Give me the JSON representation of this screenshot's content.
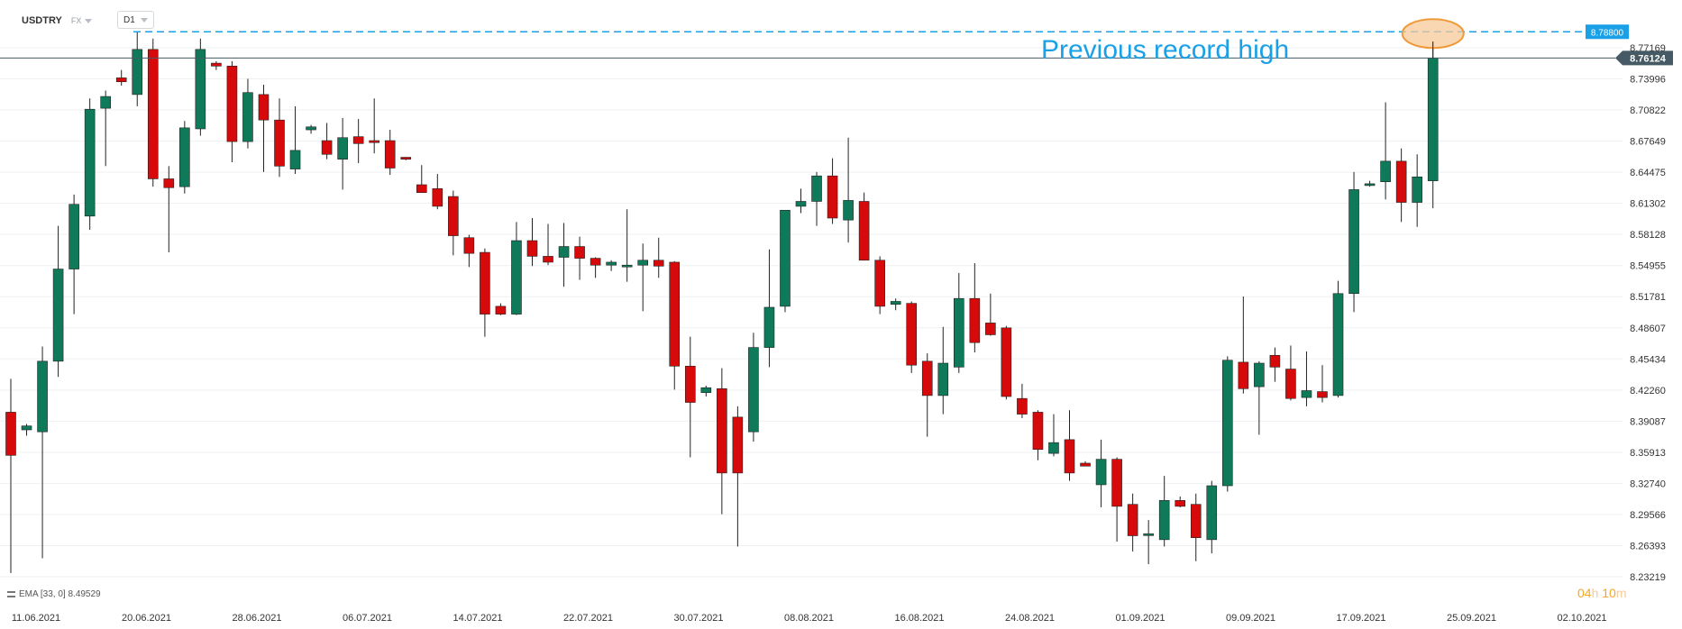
{
  "header": {
    "symbol": "USDTRY",
    "market": "FX",
    "timeframe": "D1"
  },
  "indicator": {
    "label": "EMA [33, 0] 8.49529"
  },
  "countdown": {
    "hours": "04",
    "hours_unit": "h",
    "minutes": "10",
    "minutes_unit": "m"
  },
  "colors": {
    "up": "#0f7a5a",
    "down": "#d60a0a",
    "annotation": "#1aa0e6",
    "highlight_fill": "#f7c99a",
    "highlight_stroke": "#f09a3a",
    "current_price_bg": "#455a64",
    "grid": "#eef0f2",
    "axis_text": "#333333"
  },
  "chart_data": {
    "type": "candlestick",
    "ylim": [
      8.2,
      8.8
    ],
    "y_ticks": [
      "8.77169",
      "8.73996",
      "8.70822",
      "8.67649",
      "8.64475",
      "8.61302",
      "8.58128",
      "8.54955",
      "8.51781",
      "8.48607",
      "8.45434",
      "8.42260",
      "8.39087",
      "8.35913",
      "8.32740",
      "8.29566",
      "8.26393",
      "8.23219"
    ],
    "x_tick_labels": [
      "11.06.2021",
      "20.06.2021",
      "28.06.2021",
      "06.07.2021",
      "14.07.2021",
      "22.07.2021",
      "30.07.2021",
      "08.08.2021",
      "16.08.2021",
      "24.08.2021",
      "01.09.2021",
      "09.09.2021",
      "17.09.2021",
      "25.09.2021",
      "02.10.2021"
    ],
    "annotation": {
      "text": "Previous record high",
      "level": 8.788,
      "level_label": "8.78800"
    },
    "current_price": {
      "value": 8.76124,
      "label": "8.76124"
    },
    "candles": [
      {
        "o": 8.4,
        "h": 8.434,
        "l": 8.236,
        "c": 8.356
      },
      {
        "o": 8.382,
        "h": 8.388,
        "l": 8.376,
        "c": 8.386
      },
      {
        "o": 8.38,
        "h": 8.467,
        "l": 8.251,
        "c": 8.452
      },
      {
        "o": 8.452,
        "h": 8.59,
        "l": 8.436,
        "c": 8.546
      },
      {
        "o": 8.546,
        "h": 8.622,
        "l": 8.5,
        "c": 8.612
      },
      {
        "o": 8.6,
        "h": 8.72,
        "l": 8.586,
        "c": 8.709
      },
      {
        "o": 8.71,
        "h": 8.728,
        "l": 8.651,
        "c": 8.722
      },
      {
        "o": 8.741,
        "h": 8.749,
        "l": 8.733,
        "c": 8.737
      },
      {
        "o": 8.724,
        "h": 8.788,
        "l": 8.712,
        "c": 8.77
      },
      {
        "o": 8.77,
        "h": 8.781,
        "l": 8.63,
        "c": 8.638
      },
      {
        "o": 8.638,
        "h": 8.651,
        "l": 8.563,
        "c": 8.629
      },
      {
        "o": 8.63,
        "h": 8.697,
        "l": 8.623,
        "c": 8.69
      },
      {
        "o": 8.689,
        "h": 8.781,
        "l": 8.682,
        "c": 8.77
      },
      {
        "o": 8.756,
        "h": 8.758,
        "l": 8.749,
        "c": 8.753
      },
      {
        "o": 8.753,
        "h": 8.758,
        "l": 8.655,
        "c": 8.676
      },
      {
        "o": 8.676,
        "h": 8.74,
        "l": 8.669,
        "c": 8.726
      },
      {
        "o": 8.724,
        "h": 8.734,
        "l": 8.645,
        "c": 8.698
      },
      {
        "o": 8.698,
        "h": 8.72,
        "l": 8.64,
        "c": 8.651
      },
      {
        "o": 8.648,
        "h": 8.712,
        "l": 8.643,
        "c": 8.667
      },
      {
        "o": 8.688,
        "h": 8.693,
        "l": 8.684,
        "c": 8.691
      },
      {
        "o": 8.677,
        "h": 8.695,
        "l": 8.658,
        "c": 8.663
      },
      {
        "o": 8.658,
        "h": 8.7,
        "l": 8.627,
        "c": 8.68
      },
      {
        "o": 8.681,
        "h": 8.699,
        "l": 8.654,
        "c": 8.674
      },
      {
        "o": 8.677,
        "h": 8.72,
        "l": 8.664,
        "c": 8.675
      },
      {
        "o": 8.677,
        "h": 8.688,
        "l": 8.642,
        "c": 8.649
      },
      {
        "o": 8.66,
        "h": 8.66,
        "l": 8.657,
        "c": 8.658
      },
      {
        "o": 8.632,
        "h": 8.652,
        "l": 8.624,
        "c": 8.624
      },
      {
        "o": 8.628,
        "h": 8.643,
        "l": 8.607,
        "c": 8.61
      },
      {
        "o": 8.62,
        "h": 8.626,
        "l": 8.56,
        "c": 8.58
      },
      {
        "o": 8.578,
        "h": 8.581,
        "l": 8.548,
        "c": 8.562
      },
      {
        "o": 8.563,
        "h": 8.567,
        "l": 8.477,
        "c": 8.5
      },
      {
        "o": 8.508,
        "h": 8.511,
        "l": 8.499,
        "c": 8.5
      },
      {
        "o": 8.5,
        "h": 8.594,
        "l": 8.499,
        "c": 8.575
      },
      {
        "o": 8.575,
        "h": 8.598,
        "l": 8.549,
        "c": 8.559
      },
      {
        "o": 8.559,
        "h": 8.592,
        "l": 8.55,
        "c": 8.553
      },
      {
        "o": 8.558,
        "h": 8.593,
        "l": 8.528,
        "c": 8.569
      },
      {
        "o": 8.569,
        "h": 8.579,
        "l": 8.535,
        "c": 8.557
      },
      {
        "o": 8.557,
        "h": 8.558,
        "l": 8.537,
        "c": 8.55
      },
      {
        "o": 8.55,
        "h": 8.555,
        "l": 8.544,
        "c": 8.553
      },
      {
        "o": 8.549,
        "h": 8.607,
        "l": 8.533,
        "c": 8.55
      },
      {
        "o": 8.55,
        "h": 8.572,
        "l": 8.503,
        "c": 8.555
      },
      {
        "o": 8.555,
        "h": 8.578,
        "l": 8.537,
        "c": 8.549
      },
      {
        "o": 8.553,
        "h": 8.554,
        "l": 8.423,
        "c": 8.447
      },
      {
        "o": 8.447,
        "h": 8.477,
        "l": 8.354,
        "c": 8.41
      },
      {
        "o": 8.42,
        "h": 8.427,
        "l": 8.416,
        "c": 8.425
      },
      {
        "o": 8.424,
        "h": 8.445,
        "l": 8.296,
        "c": 8.338
      },
      {
        "o": 8.395,
        "h": 8.406,
        "l": 8.263,
        "c": 8.338
      },
      {
        "o": 8.38,
        "h": 8.481,
        "l": 8.37,
        "c": 8.466
      },
      {
        "o": 8.466,
        "h": 8.566,
        "l": 8.446,
        "c": 8.507
      },
      {
        "o": 8.508,
        "h": 8.605,
        "l": 8.502,
        "c": 8.606
      },
      {
        "o": 8.61,
        "h": 8.628,
        "l": 8.603,
        "c": 8.615
      },
      {
        "o": 8.615,
        "h": 8.645,
        "l": 8.59,
        "c": 8.641
      },
      {
        "o": 8.641,
        "h": 8.659,
        "l": 8.592,
        "c": 8.598
      },
      {
        "o": 8.596,
        "h": 8.68,
        "l": 8.573,
        "c": 8.616
      },
      {
        "o": 8.615,
        "h": 8.624,
        "l": 8.555,
        "c": 8.555
      },
      {
        "o": 8.555,
        "h": 8.559,
        "l": 8.5,
        "c": 8.508
      },
      {
        "o": 8.51,
        "h": 8.516,
        "l": 8.504,
        "c": 8.513
      },
      {
        "o": 8.511,
        "h": 8.513,
        "l": 8.44,
        "c": 8.448
      },
      {
        "o": 8.452,
        "h": 8.46,
        "l": 8.375,
        "c": 8.417
      },
      {
        "o": 8.417,
        "h": 8.487,
        "l": 8.398,
        "c": 8.45
      },
      {
        "o": 8.446,
        "h": 8.542,
        "l": 8.44,
        "c": 8.516
      },
      {
        "o": 8.516,
        "h": 8.552,
        "l": 8.461,
        "c": 8.471
      },
      {
        "o": 8.491,
        "h": 8.521,
        "l": 8.478,
        "c": 8.479
      },
      {
        "o": 8.486,
        "h": 8.488,
        "l": 8.413,
        "c": 8.416
      },
      {
        "o": 8.414,
        "h": 8.429,
        "l": 8.394,
        "c": 8.398
      },
      {
        "o": 8.4,
        "h": 8.402,
        "l": 8.351,
        "c": 8.362
      },
      {
        "o": 8.358,
        "h": 8.398,
        "l": 8.355,
        "c": 8.369
      },
      {
        "o": 8.372,
        "h": 8.402,
        "l": 8.33,
        "c": 8.338
      },
      {
        "o": 8.348,
        "h": 8.35,
        "l": 8.345,
        "c": 8.345
      },
      {
        "o": 8.326,
        "h": 8.372,
        "l": 8.303,
        "c": 8.352
      },
      {
        "o": 8.352,
        "h": 8.354,
        "l": 8.268,
        "c": 8.304
      },
      {
        "o": 8.306,
        "h": 8.317,
        "l": 8.258,
        "c": 8.274
      },
      {
        "o": 8.275,
        "h": 8.29,
        "l": 8.245,
        "c": 8.276
      },
      {
        "o": 8.27,
        "h": 8.335,
        "l": 8.263,
        "c": 8.31
      },
      {
        "o": 8.31,
        "h": 8.314,
        "l": 8.303,
        "c": 8.304
      },
      {
        "o": 8.306,
        "h": 8.317,
        "l": 8.248,
        "c": 8.272
      },
      {
        "o": 8.27,
        "h": 8.33,
        "l": 8.256,
        "c": 8.325
      },
      {
        "o": 8.325,
        "h": 8.457,
        "l": 8.319,
        "c": 8.453
      },
      {
        "o": 8.451,
        "h": 8.518,
        "l": 8.419,
        "c": 8.424
      },
      {
        "o": 8.426,
        "h": 8.452,
        "l": 8.377,
        "c": 8.45
      },
      {
        "o": 8.458,
        "h": 8.466,
        "l": 8.431,
        "c": 8.446
      },
      {
        "o": 8.444,
        "h": 8.468,
        "l": 8.412,
        "c": 8.414
      },
      {
        "o": 8.415,
        "h": 8.462,
        "l": 8.406,
        "c": 8.422
      },
      {
        "o": 8.421,
        "h": 8.448,
        "l": 8.41,
        "c": 8.415
      },
      {
        "o": 8.417,
        "h": 8.534,
        "l": 8.415,
        "c": 8.521
      },
      {
        "o": 8.521,
        "h": 8.645,
        "l": 8.502,
        "c": 8.627
      },
      {
        "o": 8.633,
        "h": 8.636,
        "l": 8.63,
        "c": 8.633
      },
      {
        "o": 8.635,
        "h": 8.716,
        "l": 8.617,
        "c": 8.656
      },
      {
        "o": 8.656,
        "h": 8.669,
        "l": 8.594,
        "c": 8.614
      },
      {
        "o": 8.614,
        "h": 8.663,
        "l": 8.589,
        "c": 8.64
      },
      {
        "o": 8.636,
        "h": 8.778,
        "l": 8.608,
        "c": 8.761
      }
    ]
  }
}
